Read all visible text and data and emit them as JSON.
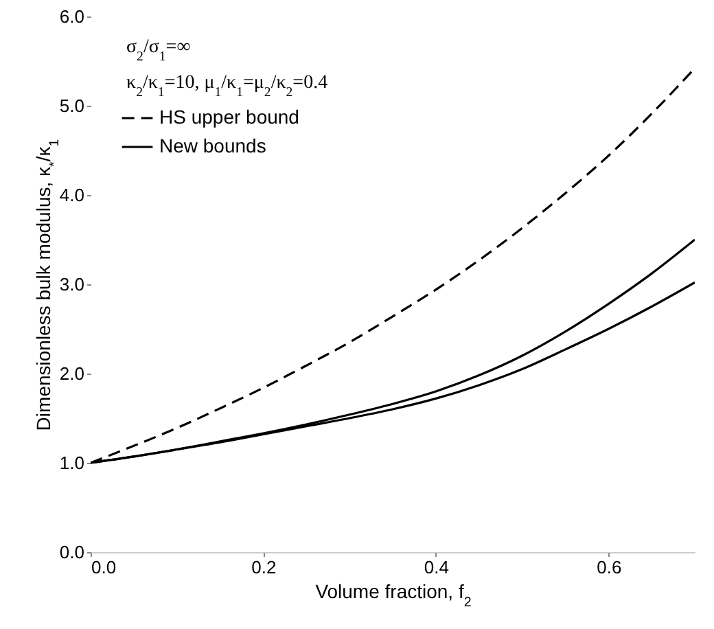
{
  "chart_data": {
    "type": "line",
    "xlabel": "Volume fraction, f$_{2}$",
    "ylabel": "Dimensionless bulk modulus, κ$_{*}$/κ$_{1}$",
    "annotations": [
      "σ$_{2}$/σ$_{1}$=∞",
      "κ$_{2}$/κ$_{1}$=10, μ$_{1}$/κ$_{1}$=μ$_{2}$/κ$_{2}$=0.4"
    ],
    "x": [
      0,
      0.05,
      0.1,
      0.15,
      0.2,
      0.25,
      0.3,
      0.35,
      0.4,
      0.45,
      0.5,
      0.55,
      0.6,
      0.65,
      0.7
    ],
    "series": [
      {
        "name": "HS upper bound",
        "color": "#000000",
        "line_style": "dashed",
        "values": [
          1.0,
          1.19,
          1.39,
          1.61,
          1.84,
          2.09,
          2.35,
          2.64,
          2.94,
          3.27,
          3.63,
          4.02,
          4.44,
          4.91,
          5.42
        ]
      },
      {
        "name": "New bounds",
        "color": "#000000",
        "line_style": "solid",
        "values": [
          1.0,
          1.07,
          1.15,
          1.24,
          1.33,
          1.43,
          1.54,
          1.66,
          1.8,
          1.98,
          2.2,
          2.47,
          2.78,
          3.12,
          3.5
        ]
      },
      {
        "color": "#000000",
        "line_style": "solid",
        "values": [
          1.0,
          1.07,
          1.15,
          1.23,
          1.32,
          1.41,
          1.5,
          1.6,
          1.72,
          1.87,
          2.05,
          2.27,
          2.5,
          2.75,
          3.02
        ]
      }
    ],
    "xlim": [
      0,
      0.7
    ],
    "ylim": [
      0,
      6
    ],
    "xticks": [
      {
        "value": 0,
        "label": "0.0"
      },
      {
        "value": 0.2,
        "label": "0.2"
      },
      {
        "value": 0.4,
        "label": "0.4"
      },
      {
        "value": 0.6,
        "label": "0.6"
      }
    ],
    "yticks": [
      {
        "value": 0,
        "label": "0.0"
      },
      {
        "value": 1,
        "label": "1.0"
      },
      {
        "value": 2,
        "label": "2.0"
      },
      {
        "value": 3,
        "label": "3.0"
      },
      {
        "value": 4,
        "label": "4.0"
      },
      {
        "value": 5,
        "label": "5.0"
      },
      {
        "value": 6,
        "label": "6.0"
      }
    ],
    "grid": false,
    "legend": "top left"
  }
}
